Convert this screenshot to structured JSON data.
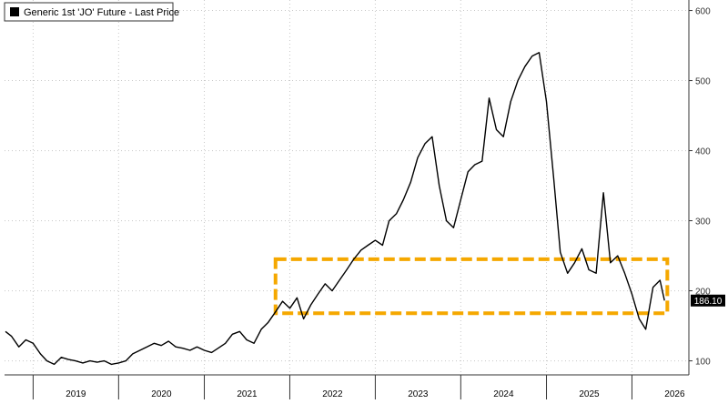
{
  "chart_data": {
    "type": "line",
    "legend": {
      "label": "Generic 1st 'JO' Future - Last Price",
      "position": "top-left"
    },
    "last_value_label": "186.10",
    "x_ticks": [
      "2019",
      "2020",
      "2021",
      "2022",
      "2023",
      "2024",
      "2025",
      "2026"
    ],
    "y_ticks": [
      100,
      200,
      300,
      400,
      500,
      600
    ],
    "xlim": [
      "2018-09-01",
      "2026-09-01"
    ],
    "ylim": [
      80,
      615
    ],
    "grid": true,
    "highlight_band": {
      "y_low": 168,
      "y_high": 245,
      "x_start": "2021-11-01",
      "x_end": "2026-06-01",
      "color": "#f5a800"
    },
    "series": [
      {
        "color": "#000000",
        "points": [
          [
            "2018-09-05",
            142
          ],
          [
            "2018-10-01",
            135
          ],
          [
            "2018-11-01",
            120
          ],
          [
            "2018-12-01",
            130
          ],
          [
            "2019-01-01",
            125
          ],
          [
            "2019-02-01",
            110
          ],
          [
            "2019-03-01",
            100
          ],
          [
            "2019-04-01",
            95
          ],
          [
            "2019-05-01",
            105
          ],
          [
            "2019-06-01",
            102
          ],
          [
            "2019-07-01",
            100
          ],
          [
            "2019-08-01",
            97
          ],
          [
            "2019-09-01",
            100
          ],
          [
            "2019-10-01",
            98
          ],
          [
            "2019-11-01",
            100
          ],
          [
            "2019-12-01",
            95
          ],
          [
            "2020-01-01",
            97
          ],
          [
            "2020-02-01",
            100
          ],
          [
            "2020-03-01",
            110
          ],
          [
            "2020-04-01",
            115
          ],
          [
            "2020-05-01",
            120
          ],
          [
            "2020-06-01",
            125
          ],
          [
            "2020-07-01",
            122
          ],
          [
            "2020-08-01",
            128
          ],
          [
            "2020-09-01",
            120
          ],
          [
            "2020-10-01",
            118
          ],
          [
            "2020-11-01",
            115
          ],
          [
            "2020-12-01",
            120
          ],
          [
            "2021-01-01",
            115
          ],
          [
            "2021-02-01",
            112
          ],
          [
            "2021-03-01",
            118
          ],
          [
            "2021-04-01",
            125
          ],
          [
            "2021-05-01",
            138
          ],
          [
            "2021-06-01",
            142
          ],
          [
            "2021-07-01",
            130
          ],
          [
            "2021-08-01",
            125
          ],
          [
            "2021-09-01",
            145
          ],
          [
            "2021-10-01",
            155
          ],
          [
            "2021-11-01",
            170
          ],
          [
            "2021-12-01",
            185
          ],
          [
            "2022-01-01",
            175
          ],
          [
            "2022-02-01",
            190
          ],
          [
            "2022-03-01",
            160
          ],
          [
            "2022-04-01",
            180
          ],
          [
            "2022-05-01",
            195
          ],
          [
            "2022-06-01",
            210
          ],
          [
            "2022-07-01",
            200
          ],
          [
            "2022-08-01",
            215
          ],
          [
            "2022-09-01",
            230
          ],
          [
            "2022-10-01",
            245
          ],
          [
            "2022-11-01",
            258
          ],
          [
            "2022-12-01",
            265
          ],
          [
            "2023-01-01",
            272
          ],
          [
            "2023-02-01",
            265
          ],
          [
            "2023-03-01",
            300
          ],
          [
            "2023-04-01",
            310
          ],
          [
            "2023-05-01",
            330
          ],
          [
            "2023-06-01",
            355
          ],
          [
            "2023-07-01",
            390
          ],
          [
            "2023-08-01",
            410
          ],
          [
            "2023-09-01",
            420
          ],
          [
            "2023-10-01",
            350
          ],
          [
            "2023-11-01",
            300
          ],
          [
            "2023-12-01",
            290
          ],
          [
            "2024-01-01",
            330
          ],
          [
            "2024-02-01",
            370
          ],
          [
            "2024-03-01",
            380
          ],
          [
            "2024-04-01",
            385
          ],
          [
            "2024-05-01",
            475
          ],
          [
            "2024-06-01",
            430
          ],
          [
            "2024-07-01",
            420
          ],
          [
            "2024-08-01",
            470
          ],
          [
            "2024-09-01",
            500
          ],
          [
            "2024-10-01",
            520
          ],
          [
            "2024-11-01",
            535
          ],
          [
            "2024-12-01",
            540
          ],
          [
            "2025-01-01",
            470
          ],
          [
            "2025-02-01",
            360
          ],
          [
            "2025-03-01",
            255
          ],
          [
            "2025-04-01",
            225
          ],
          [
            "2025-05-01",
            240
          ],
          [
            "2025-06-01",
            260
          ],
          [
            "2025-07-01",
            230
          ],
          [
            "2025-08-01",
            225
          ],
          [
            "2025-09-01",
            340
          ],
          [
            "2025-10-01",
            240
          ],
          [
            "2025-11-01",
            250
          ],
          [
            "2025-12-01",
            225
          ],
          [
            "2026-01-01",
            195
          ],
          [
            "2026-02-01",
            160
          ],
          [
            "2026-03-01",
            145
          ],
          [
            "2026-04-01",
            205
          ],
          [
            "2026-05-01",
            215
          ],
          [
            "2026-05-20",
            186.1
          ]
        ]
      }
    ]
  }
}
